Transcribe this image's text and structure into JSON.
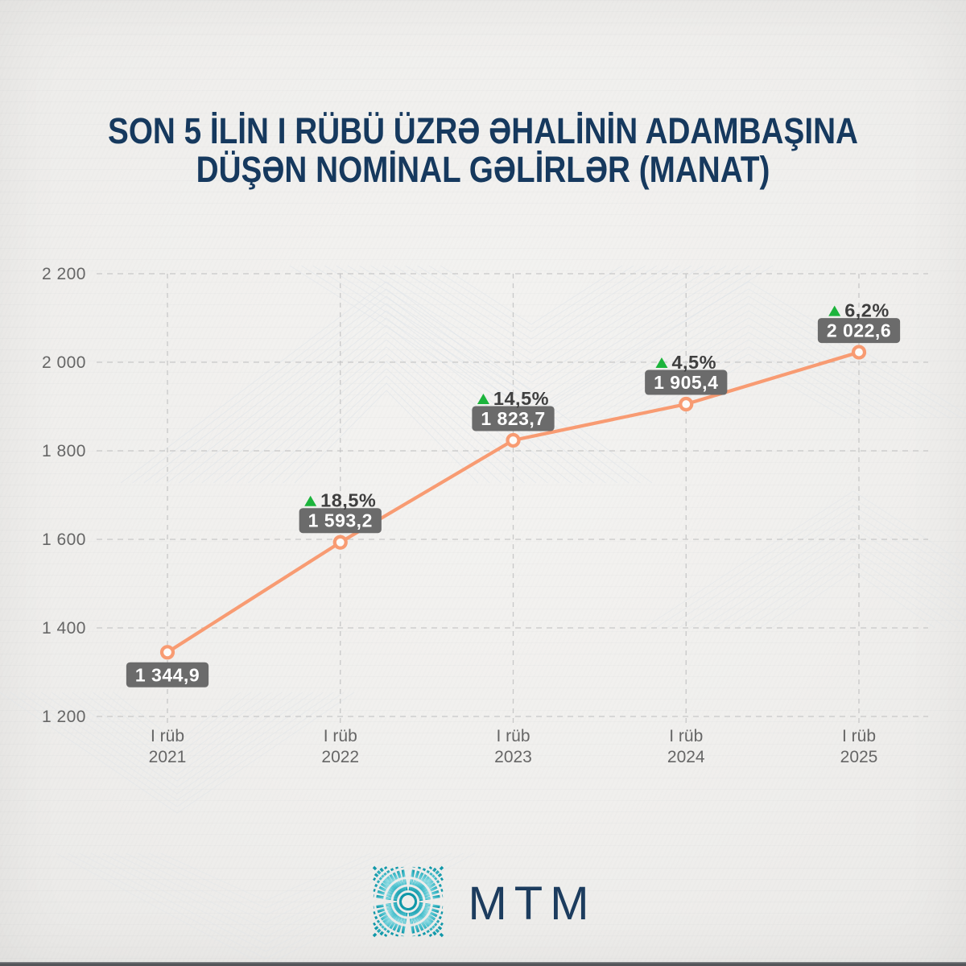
{
  "title": {
    "line1": "SON 5 İLİN I RÜBÜ ÜZRƏ ƏHALİNİN ADAMBAŞINA",
    "line2": "DÜŞƏN NOMİNAL GƏLİRLƏR (MANAT)",
    "color": "#16395E"
  },
  "chart_data": {
    "type": "line",
    "title": "SON 5 İLİN I RÜBÜ ÜZRƏ ƏHALİNİN ADAMBAŞINA DÜŞƏN NOMİNAL GƏLİRLƏR (MANAT)",
    "categories": [
      "I rüb 2021",
      "I rüb 2022",
      "I rüb 2023",
      "I rüb 2024",
      "I rüb 2025"
    ],
    "x_tick_line1": [
      "I rüb",
      "I rüb",
      "I rüb",
      "I rüb",
      "I rüb"
    ],
    "x_tick_line2": [
      "2021",
      "2022",
      "2023",
      "2024",
      "2025"
    ],
    "values": [
      1344.9,
      1593.2,
      1823.7,
      1905.4,
      2022.6
    ],
    "value_labels": [
      "1 344,9",
      "1 593,2",
      "1 823,7",
      "1 905,4",
      "2 022,6"
    ],
    "value_label_position": [
      "below",
      "above",
      "above",
      "above",
      "above"
    ],
    "pct_changes": [
      null,
      "18,5%",
      "14,5%",
      "4,5%",
      "6,2%"
    ],
    "pct_direction": [
      null,
      "up",
      "up",
      "up",
      "up"
    ],
    "ylim": [
      1200,
      2200
    ],
    "y_ticks": [
      1200,
      1400,
      1600,
      1800,
      2000,
      2200
    ],
    "y_tick_labels": [
      "1 200",
      "1 400",
      "1 600",
      "1 800",
      "2 000",
      "2 200"
    ],
    "grid": "dashed horizontal + vertical at category positions",
    "legend": "none",
    "line_color": "#F89B72",
    "marker_style": "open-circle",
    "marker_fill": "#FCFBF9",
    "value_box_bg": "#6B6B6B",
    "value_box_text": "#FFFFFF",
    "pct_text_color": "#3F3F3F",
    "up_arrow_color": "#1CB43C",
    "grid_color": "#C8C8C8",
    "axis_text_color": "#666666"
  },
  "footer": {
    "brand": "MTM",
    "brand_color": "#1C3C5E",
    "logo_teal_dark": "#0F97A8",
    "logo_teal_mid": "#4FC2CF",
    "logo_teal_light": "#9ADEE4"
  }
}
